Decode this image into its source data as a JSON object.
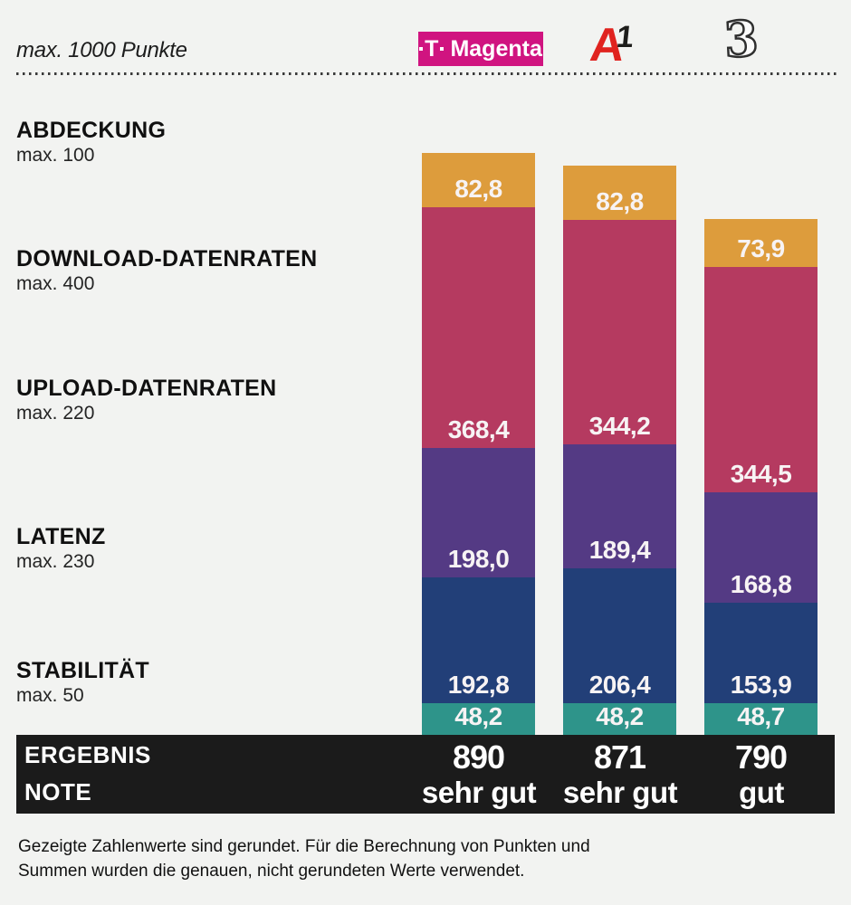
{
  "page": {
    "background": "#f2f3f1",
    "band_color": "#1b1b1b"
  },
  "header": {
    "max_points_label": "max. 1000 Punkte",
    "providers": [
      {
        "name": "Magenta",
        "logo": {
          "t_glyph": "T",
          "text": "Magenta",
          "bg_color": "#d01480",
          "text_color": "#ffffff"
        }
      },
      {
        "name": "A1",
        "logo": {
          "a_glyph": "A",
          "one_glyph": "1",
          "a_color": "#e0231f",
          "one_color": "#1d1d1b"
        }
      },
      {
        "name": "Drei",
        "logo": {
          "three_glyph": "3",
          "outline_color": "#2f2f2f"
        }
      }
    ]
  },
  "categories": [
    {
      "label": "ABDECKUNG",
      "max_label": "max. 100"
    },
    {
      "label": "DOWNLOAD-DATENRATEN",
      "max_label": "max. 400"
    },
    {
      "label": "UPLOAD-DATENRATEN",
      "max_label": "max. 220"
    },
    {
      "label": "LATENZ",
      "max_label": "max. 230"
    },
    {
      "label": "STABILITÄT",
      "max_label": "max. 50"
    }
  ],
  "chart_data": {
    "type": "bar",
    "stacked": true,
    "unit": "Punkte",
    "max_total": 1000,
    "categories": [
      "Magenta",
      "A1",
      "Drei"
    ],
    "series": [
      {
        "key": "abdeckung",
        "name": "Abdeckung",
        "max": 100,
        "color": "#dd9c3c",
        "values": [
          82.8,
          82.8,
          73.9
        ],
        "labels": [
          "82,8",
          "82,8",
          "73,9"
        ]
      },
      {
        "key": "download",
        "name": "Download-Datenraten",
        "max": 400,
        "color": "#b53a60",
        "values": [
          368.4,
          344.2,
          344.5
        ],
        "labels": [
          "368,4",
          "344,2",
          "344,5"
        ]
      },
      {
        "key": "upload",
        "name": "Upload-Datenraten",
        "max": 220,
        "color": "#543a84",
        "values": [
          198.0,
          189.4,
          168.8
        ],
        "labels": [
          "198,0",
          "189,4",
          "168,8"
        ]
      },
      {
        "key": "latenz",
        "name": "Latenz",
        "max": 230,
        "color": "#223f78",
        "values": [
          192.8,
          206.4,
          153.9
        ],
        "labels": [
          "192,8",
          "206,4",
          "153,9"
        ]
      },
      {
        "key": "stabilitaet",
        "name": "Stabilität",
        "max": 50,
        "color": "#2e948a",
        "values": [
          48.2,
          48.2,
          48.7
        ],
        "labels": [
          "48,2",
          "48,2",
          "48,7"
        ]
      }
    ],
    "totals": [
      890,
      871,
      790
    ],
    "total_labels": [
      "890",
      "871",
      "790"
    ],
    "grades": [
      "sehr gut",
      "sehr gut",
      "gut"
    ],
    "legend_position": "none",
    "grid": false
  },
  "results": {
    "row1_label": "ERGEBNIS",
    "row2_label": "NOTE"
  },
  "footer": {
    "note": "Gezeigte Zahlenwerte sind gerundet. Für die Berechnung von Punkten und Summen wurden die genauen, nicht gerundeten Werte verwendet."
  }
}
